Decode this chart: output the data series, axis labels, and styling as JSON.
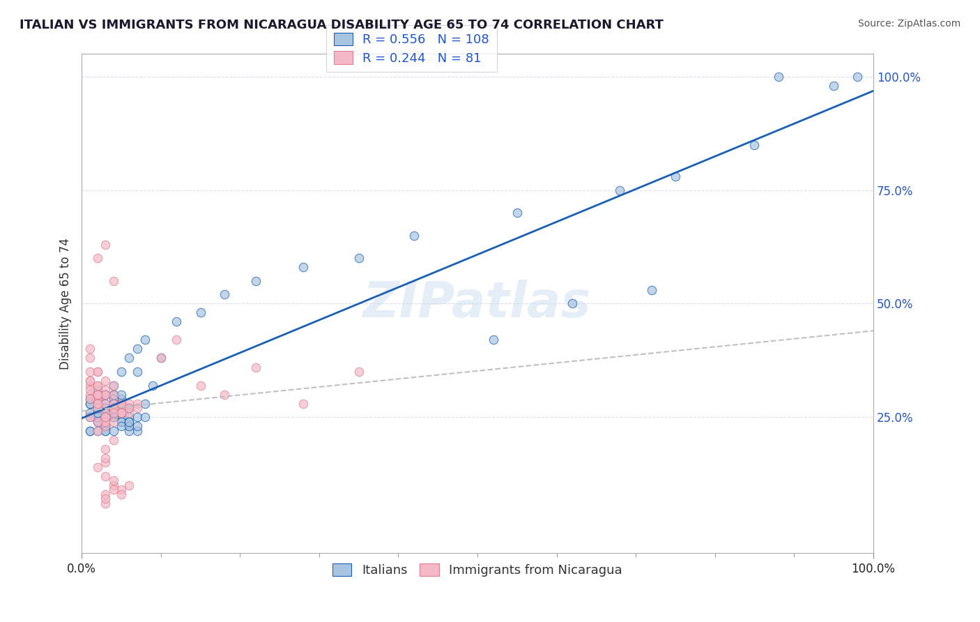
{
  "title": "ITALIAN VS IMMIGRANTS FROM NICARAGUA DISABILITY AGE 65 TO 74 CORRELATION CHART",
  "source_text": "Source: ZipAtlas.com",
  "xlabel": "",
  "ylabel": "Disability Age 65 to 74",
  "xlim": [
    0,
    100
  ],
  "ylim": [
    -5,
    105
  ],
  "xtick_labels": [
    "0.0%",
    "100.0%"
  ],
  "ytick_labels": [
    "25.0%",
    "50.0%",
    "75.0%",
    "100.0%"
  ],
  "ytick_values": [
    25,
    50,
    75,
    100
  ],
  "legend_labels": [
    "Italians",
    "Immigrants from Nicaragua"
  ],
  "blue_R": "0.556",
  "blue_N": "108",
  "pink_R": "0.244",
  "pink_N": "81",
  "blue_color": "#a8c4e0",
  "pink_color": "#f4b8c8",
  "blue_line_color": "#1a5fb4",
  "pink_line_color": "#c0c0c0",
  "title_color": "#1a1a2e",
  "source_color": "#555555",
  "legend_r_color": "#2255cc",
  "watermark_color": "#ccddee",
  "background_color": "#ffffff",
  "grid_color": "#ddddee",
  "blue_points_x": [
    2,
    3,
    1,
    4,
    5,
    2,
    3,
    6,
    1,
    2,
    4,
    3,
    5,
    2,
    1,
    3,
    4,
    6,
    2,
    3,
    5,
    1,
    4,
    2,
    3,
    6,
    7,
    2,
    1,
    4,
    3,
    5,
    2,
    3,
    4,
    1,
    6,
    2,
    3,
    5,
    4,
    2,
    3,
    1,
    5,
    4,
    6,
    3,
    2,
    4,
    7,
    3,
    5,
    2,
    4,
    6,
    3,
    1,
    2,
    5,
    4,
    3,
    6,
    2,
    8,
    4,
    3,
    5,
    2,
    6,
    3,
    4,
    7,
    2,
    5,
    3,
    4,
    6,
    8,
    3,
    5,
    7,
    4,
    9,
    3,
    6,
    5,
    4,
    7,
    10,
    8,
    12,
    15,
    18,
    22,
    28,
    35,
    42,
    55,
    68,
    75,
    85,
    95,
    98,
    52,
    62,
    72,
    88
  ],
  "blue_points_y": [
    28,
    25,
    22,
    30,
    27,
    24,
    26,
    23,
    29,
    31,
    25,
    27,
    24,
    28,
    22,
    26,
    30,
    25,
    27,
    23,
    29,
    26,
    28,
    24,
    25,
    27,
    22,
    30,
    28,
    26,
    24,
    27,
    29,
    23,
    25,
    28,
    22,
    26,
    30,
    24,
    27,
    25,
    23,
    29,
    26,
    28,
    24,
    22,
    27,
    30,
    25,
    28,
    23,
    26,
    29,
    24,
    27,
    25,
    22,
    28,
    26,
    30,
    23,
    27,
    25,
    28,
    22,
    26,
    29,
    24,
    27,
    25,
    23,
    28,
    26,
    30,
    22,
    27,
    28,
    25,
    30,
    35,
    28,
    32,
    27,
    38,
    35,
    32,
    40,
    38,
    42,
    46,
    48,
    52,
    55,
    58,
    60,
    65,
    70,
    75,
    78,
    85,
    98,
    100,
    42,
    50,
    53,
    100
  ],
  "pink_points_x": [
    1,
    2,
    3,
    1,
    4,
    2,
    3,
    1,
    5,
    2,
    3,
    4,
    1,
    2,
    3,
    5,
    1,
    4,
    2,
    3,
    6,
    1,
    2,
    3,
    4,
    5,
    2,
    1,
    3,
    6,
    2,
    4,
    3,
    1,
    5,
    2,
    3,
    4,
    1,
    7,
    2,
    3,
    5,
    4,
    2,
    1,
    6,
    3,
    4,
    2,
    5,
    3,
    7,
    2,
    4,
    10,
    12,
    15,
    18,
    22,
    28,
    35,
    3,
    4,
    5,
    3,
    4,
    3,
    5,
    6,
    3,
    4,
    2,
    3,
    4,
    3,
    2,
    3,
    4,
    3,
    2
  ],
  "pink_points_y": [
    30,
    28,
    25,
    32,
    27,
    35,
    24,
    38,
    26,
    29,
    31,
    27,
    33,
    30,
    26,
    28,
    40,
    32,
    27,
    23,
    26,
    35,
    30,
    28,
    24,
    27,
    32,
    29,
    25,
    28,
    30,
    27,
    24,
    33,
    26,
    28,
    30,
    27,
    25,
    28,
    32,
    30,
    26,
    28,
    24,
    31,
    27,
    33,
    26,
    30,
    28,
    25,
    27,
    35,
    30,
    38,
    42,
    32,
    30,
    36,
    28,
    35,
    8,
    10,
    9,
    12,
    11,
    6,
    8,
    10,
    7,
    9,
    60,
    63,
    55,
    15,
    22,
    16,
    20,
    18,
    14
  ]
}
